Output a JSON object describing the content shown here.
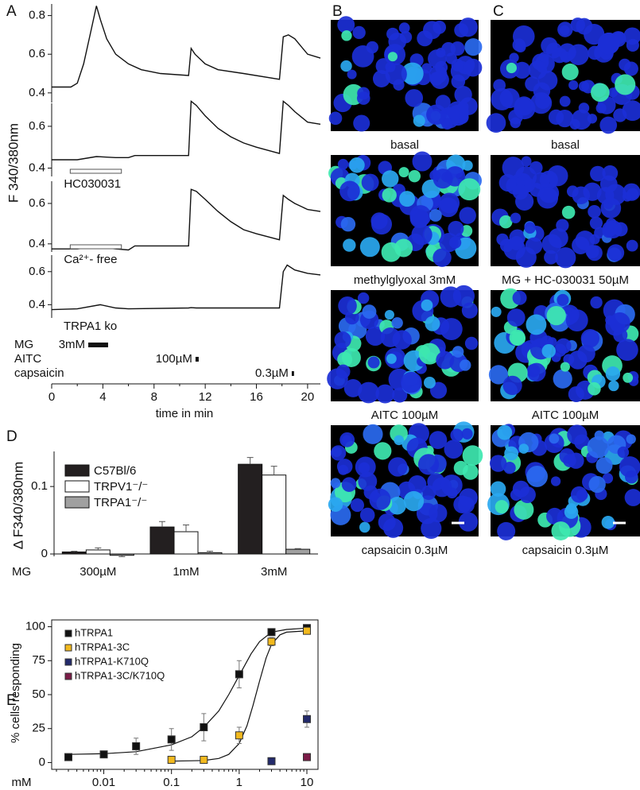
{
  "chart_data": [
    {
      "type": "line",
      "panel": "A",
      "y_label": "F 340/380nm",
      "x": [
        0,
        1.5,
        2,
        2.5,
        3,
        3.5,
        3.8,
        4.3,
        5,
        6,
        7,
        8.5,
        10.7,
        10.9,
        11.2,
        12,
        13,
        15,
        17.8,
        18.1,
        18.5,
        19,
        20,
        21
      ],
      "series": [
        {
          "color": "#111111",
          "values": [
            0.43,
            0.43,
            0.45,
            0.55,
            0.7,
            0.85,
            0.78,
            0.68,
            0.6,
            0.55,
            0.52,
            0.5,
            0.49,
            0.63,
            0.6,
            0.55,
            0.52,
            0.5,
            0.47,
            0.69,
            0.7,
            0.68,
            0.6,
            0.58
          ]
        }
      ],
      "xlim": [
        0,
        21
      ],
      "ylim": [
        0.35,
        0.86
      ],
      "yticks": [
        0.4,
        0.6,
        0.8
      ]
    },
    {
      "type": "line",
      "x": [
        0,
        2,
        3.5,
        5,
        6,
        6.5,
        10.7,
        10.9,
        11.3,
        12,
        13,
        14,
        15,
        16,
        17.8,
        18.1,
        18.5,
        19,
        20,
        21
      ],
      "series": [
        {
          "color": "#111111",
          "values": [
            0.44,
            0.44,
            0.455,
            0.45,
            0.45,
            0.46,
            0.46,
            0.72,
            0.7,
            0.65,
            0.59,
            0.55,
            0.52,
            0.5,
            0.47,
            0.72,
            0.7,
            0.67,
            0.62,
            0.61
          ]
        }
      ],
      "xlim": [
        0,
        21
      ],
      "ylim": [
        0.36,
        0.71
      ],
      "yticks": [
        0.4,
        0.6
      ],
      "condition": {
        "label": "HC030031",
        "start": 1.45,
        "end": 5.45
      }
    },
    {
      "type": "line",
      "x": [
        0,
        2,
        3.5,
        5,
        6,
        6.5,
        10.7,
        10.9,
        11.3,
        12,
        13,
        14,
        15,
        16,
        17.8,
        18.1,
        18.5,
        19,
        20,
        21
      ],
      "series": [
        {
          "color": "#111111",
          "values": [
            0.375,
            0.375,
            0.385,
            0.375,
            0.37,
            0.39,
            0.39,
            0.67,
            0.66,
            0.62,
            0.56,
            0.51,
            0.47,
            0.45,
            0.42,
            0.64,
            0.62,
            0.6,
            0.57,
            0.56
          ]
        }
      ],
      "xlim": [
        0,
        21
      ],
      "ylim": [
        0.36,
        0.71
      ],
      "yticks": [
        0.4,
        0.6
      ],
      "condition": {
        "label": "Ca²⁺- free",
        "start": 1.45,
        "end": 5.45
      }
    },
    {
      "type": "line",
      "annotation": "TRPA1 ko",
      "x_label": "time in min",
      "x": [
        0,
        2,
        3.8,
        5,
        6,
        10.7,
        10.9,
        11.3,
        17.8,
        18.1,
        18.4,
        19,
        20,
        21
      ],
      "series": [
        {
          "color": "#111111",
          "values": [
            0.37,
            0.375,
            0.4,
            0.38,
            0.375,
            0.38,
            0.382,
            0.38,
            0.38,
            0.6,
            0.64,
            0.61,
            0.59,
            0.58
          ]
        }
      ],
      "xlim": [
        0,
        21
      ],
      "xticks": [
        0,
        4,
        8,
        12,
        16,
        20
      ],
      "ylim": [
        0.32,
        0.7
      ],
      "yticks": [
        0.4,
        0.6
      ],
      "stimuli": [
        {
          "label": "MG",
          "dose": "3mM",
          "start": 2.86,
          "end": 4.41
        },
        {
          "label": "AITC",
          "dose": "100µM",
          "start": 11.24,
          "end": 11.49
        },
        {
          "label": "capsaicin",
          "dose": "0.3µM",
          "start": 18.76,
          "end": 18.94
        }
      ]
    },
    {
      "type": "images",
      "panel": "B",
      "captions": [
        "basal",
        "methylglyoxal 3mM",
        "AITC 100µM",
        "capsaicin 0.3µM"
      ]
    },
    {
      "type": "images",
      "panel": "C",
      "captions": [
        "basal",
        "MG + HC-030031 50µM",
        "AITC 100µM",
        "capsaicin 0.3µM"
      ]
    },
    {
      "type": "bar",
      "panel": "D",
      "y_label": "Δ F340/380nm",
      "x_label": "MG",
      "categories": [
        "300µM",
        "1mM",
        "3mM"
      ],
      "series": [
        {
          "name": "C57Bl/6",
          "color": "#231f20",
          "values": [
            0.003,
            0.04,
            0.133
          ],
          "errors": [
            0.001,
            0.008,
            0.01
          ]
        },
        {
          "name": "TRPV1⁻/⁻",
          "color": "#ffffff",
          "values": [
            0.006,
            0.033,
            0.117
          ],
          "errors": [
            0.003,
            0.01,
            0.013
          ]
        },
        {
          "name": "TRPA1⁻/⁻",
          "color": "#a0a0a0",
          "values": [
            -0.002,
            0.002,
            0.007
          ],
          "errors": [
            0.002,
            0.002,
            0.001
          ]
        }
      ],
      "ylim": [
        -0.0035,
        0.152
      ],
      "yticks": [
        0,
        0.1
      ]
    },
    {
      "type": "scatter",
      "panel": "E",
      "y_label": "% cells responding",
      "x_label": "mM",
      "log_x": true,
      "series": [
        {
          "name": "hTRPA1",
          "color": "#111111",
          "x": [
            0.003,
            0.01,
            0.03,
            0.1,
            0.3,
            1,
            3,
            10
          ],
          "values": [
            4,
            6,
            12,
            17,
            26,
            65,
            96,
            99
          ],
          "errors": [
            2,
            2,
            6,
            8,
            10,
            10,
            2,
            1
          ]
        },
        {
          "name": "hTRPA1-3C",
          "color": "#f2b91e",
          "x": [
            0.1,
            0.3,
            1,
            3,
            10
          ],
          "values": [
            2,
            2,
            20,
            89,
            97
          ],
          "errors": [
            1,
            1,
            6,
            3,
            2
          ]
        },
        {
          "name": "hTRPA1-K710Q",
          "color": "#232a6b",
          "x": [
            3,
            10
          ],
          "values": [
            1,
            32
          ],
          "errors": [
            0,
            6
          ]
        },
        {
          "name": "hTRPA1-3C/K710Q",
          "color": "#7b1c47",
          "x": [
            10
          ],
          "values": [
            4
          ],
          "errors": [
            0
          ]
        }
      ],
      "curves": [
        {
          "color": "#111111",
          "x": [
            0.003,
            0.01,
            0.03,
            0.1,
            0.2,
            0.3,
            0.5,
            0.7,
            1,
            1.5,
            2,
            3,
            5,
            10
          ],
          "values": [
            6,
            6.5,
            8,
            13,
            19,
            26,
            38,
            50,
            64,
            80,
            89,
            96,
            98,
            99
          ]
        },
        {
          "color": "#111111",
          "x": [
            0.1,
            0.3,
            0.5,
            0.7,
            1,
            1.3,
            1.6,
            2,
            2.5,
            3,
            4,
            5,
            10
          ],
          "values": [
            1,
            1.5,
            3,
            6,
            14,
            27,
            42,
            60,
            77,
            87,
            94,
            96,
            97
          ]
        }
      ],
      "xlim": [
        0.0017,
        14.6
      ],
      "xticks": [
        0.01,
        0.1,
        1,
        10
      ],
      "ylim": [
        -5,
        105
      ],
      "yticks": [
        0,
        25,
        50,
        75,
        100
      ]
    }
  ]
}
